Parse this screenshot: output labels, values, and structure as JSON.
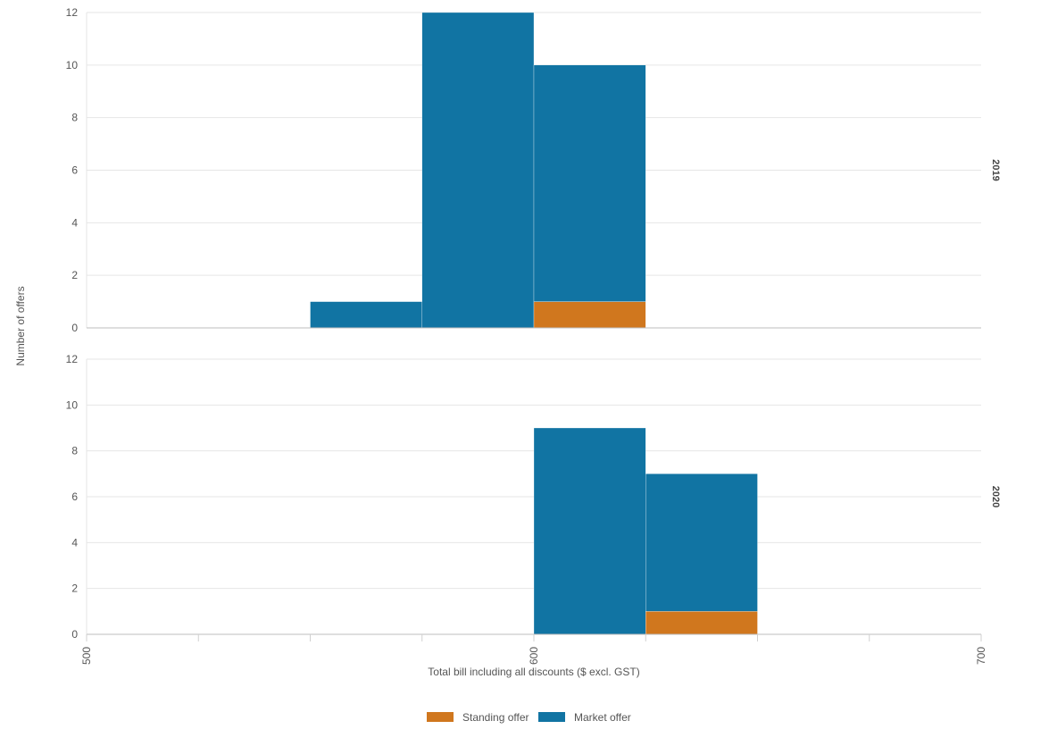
{
  "chart_data": {
    "type": "bar",
    "chart_kind": "stacked histogram, faceted by year",
    "xlabel": "Total bill including all discounts ($ excl. GST)",
    "ylabel": "Number of offers",
    "x_ticks": [
      "500",
      "600",
      "700"
    ],
    "xlim": [
      500,
      700
    ],
    "bin_width": 25,
    "ylim": [
      0,
      12
    ],
    "y_ticks": [
      "0",
      "2",
      "4",
      "6",
      "8",
      "10",
      "12"
    ],
    "grid": true,
    "legend_position": "bottom-center",
    "series_meta": [
      {
        "name": "Standing offer",
        "color": "#D0771E"
      },
      {
        "name": "Market offer",
        "color": "#1174A3"
      }
    ],
    "facets": [
      {
        "label": "2019",
        "bins": [
          {
            "x0": 550,
            "x1": 575,
            "standing": 0,
            "market": 1
          },
          {
            "x0": 575,
            "x1": 600,
            "standing": 0,
            "market": 12
          },
          {
            "x0": 600,
            "x1": 625,
            "standing": 1,
            "market": 9
          }
        ]
      },
      {
        "label": "2020",
        "bins": [
          {
            "x0": 600,
            "x1": 625,
            "standing": 0,
            "market": 9
          },
          {
            "x0": 625,
            "x1": 650,
            "standing": 1,
            "market": 6
          }
        ]
      }
    ]
  }
}
